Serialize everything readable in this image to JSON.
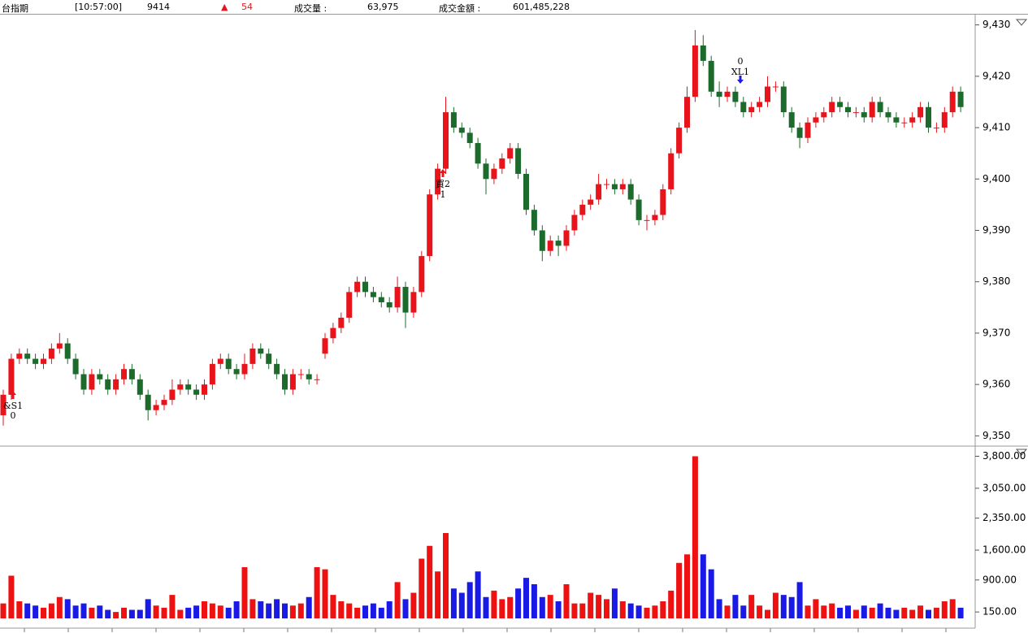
{
  "header": {
    "symbol": "台指期",
    "time": "[10:57:00]",
    "price": 9414,
    "change_symbol": "▲",
    "change": 54,
    "volume_label": "成交量 :",
    "volume": "63,975",
    "amount_label": "成交金額 :",
    "amount": "601,485,228"
  },
  "chart_data": {
    "type": "candlestick",
    "open": [
      9354,
      9358,
      9365,
      9366,
      9365,
      9364,
      9365,
      9367,
      9368,
      9365,
      9362,
      9359,
      9362,
      9361,
      9359,
      9361,
      9363,
      9361,
      9358,
      9355,
      9356,
      9357,
      9359,
      9360,
      9359,
      9358,
      9360,
      9364,
      9365,
      9363,
      9362,
      9364,
      9367,
      9366,
      9364,
      9362,
      9359,
      9362,
      9362,
      9361,
      9366,
      9369,
      9371,
      9373,
      9378,
      9380,
      9378,
      9377,
      9376,
      9375,
      9379,
      9374,
      9378,
      9385,
      9397,
      9402,
      9413,
      9410,
      9409,
      9407,
      9403,
      9400,
      9402,
      9404,
      9406,
      9401,
      9394,
      9390,
      9386,
      9388,
      9387,
      9390,
      9393,
      9395,
      9396,
      9399,
      9399,
      9398,
      9399,
      9396,
      9392,
      9392,
      9393,
      9398,
      9405,
      9410,
      9416,
      9426,
      9423,
      9417,
      9416,
      9417,
      9415,
      9413,
      9414,
      9415,
      9418,
      9418,
      9413,
      9410,
      9408,
      9411,
      9412,
      9413,
      9415,
      9414,
      9413,
      9413,
      9412,
      9415,
      9413,
      9412,
      9411,
      9411,
      9412,
      9414,
      9410,
      9410,
      9413,
      9417
    ],
    "high": [
      9359,
      9366,
      9367,
      9367,
      9366,
      9366,
      9368,
      9370,
      9369,
      9366,
      9363,
      9363,
      9363,
      9362,
      9362,
      9364,
      9364,
      9362,
      9359,
      9357,
      9358,
      9361,
      9361,
      9361,
      9360,
      9361,
      9365,
      9366,
      9366,
      9364,
      9366,
      9368,
      9368,
      9367,
      9365,
      9363,
      9363,
      9363,
      9363,
      9362,
      9370,
      9372,
      9374,
      9379,
      9381,
      9381,
      9379,
      9378,
      9377,
      9381,
      9380,
      9379,
      9386,
      9398,
      9403,
      9416,
      9414,
      9411,
      9410,
      9408,
      9404,
      9403,
      9405,
      9407,
      9407,
      9402,
      9395,
      9391,
      9389,
      9389,
      9391,
      9394,
      9396,
      9397,
      9401,
      9400,
      9400,
      9400,
      9400,
      9397,
      9393,
      9394,
      9399,
      9406,
      9411,
      9418,
      9429,
      9428,
      9424,
      9419,
      9418,
      9418,
      9416,
      9415,
      9416,
      9420,
      9419,
      9419,
      9414,
      9411,
      9412,
      9413,
      9414,
      9416,
      9416,
      9415,
      9414,
      9414,
      9416,
      9416,
      9414,
      9413,
      9412,
      9413,
      9415,
      9415,
      9411,
      9414,
      9418,
      9418
    ],
    "low": [
      9352,
      9357,
      9364,
      9364,
      9363,
      9363,
      9364,
      9366,
      9364,
      9361,
      9358,
      9358,
      9360,
      9358,
      9358,
      9360,
      9360,
      9357,
      9353,
      9354,
      9355,
      9356,
      9358,
      9358,
      9357,
      9357,
      9359,
      9363,
      9362,
      9361,
      9361,
      9363,
      9365,
      9363,
      9361,
      9358,
      9358,
      9361,
      9360,
      9360,
      9365,
      9368,
      9370,
      9372,
      9377,
      9377,
      9376,
      9375,
      9374,
      9374,
      9371,
      9373,
      9377,
      9384,
      9396,
      9401,
      9409,
      9408,
      9406,
      9402,
      9397,
      9399,
      9401,
      9403,
      9400,
      9393,
      9389,
      9384,
      9385,
      9385,
      9386,
      9389,
      9392,
      9394,
      9395,
      9398,
      9397,
      9397,
      9395,
      9391,
      9390,
      9391,
      9392,
      9397,
      9404,
      9409,
      9415,
      9422,
      9416,
      9414,
      9415,
      9414,
      9412,
      9412,
      9413,
      9414,
      9417,
      9412,
      9409,
      9406,
      9407,
      9410,
      9411,
      9412,
      9413,
      9412,
      9412,
      9411,
      9411,
      9412,
      9411,
      9410,
      9410,
      9410,
      9411,
      9409,
      9409,
      9409,
      9412,
      9413
    ],
    "close": [
      9358,
      9365,
      9366,
      9365,
      9364,
      9365,
      9367,
      9368,
      9365,
      9362,
      9359,
      9362,
      9361,
      9359,
      9361,
      9363,
      9361,
      9358,
      9355,
      9356,
      9357,
      9359,
      9360,
      9359,
      9358,
      9360,
      9364,
      9365,
      9363,
      9362,
      9364,
      9367,
      9366,
      9364,
      9362,
      9359,
      9362,
      9362,
      9361,
      9361,
      9369,
      9371,
      9373,
      9378,
      9380,
      9378,
      9377,
      9376,
      9375,
      9379,
      9374,
      9378,
      9385,
      9397,
      9402,
      9413,
      9410,
      9409,
      9407,
      9403,
      9400,
      9402,
      9404,
      9406,
      9401,
      9394,
      9390,
      9386,
      9388,
      9387,
      9390,
      9393,
      9395,
      9396,
      9399,
      9399,
      9398,
      9399,
      9396,
      9392,
      9392,
      9393,
      9398,
      9405,
      9410,
      9416,
      9426,
      9423,
      9417,
      9416,
      9417,
      9415,
      9413,
      9414,
      9415,
      9418,
      9418,
      9413,
      9410,
      9408,
      9411,
      9412,
      9413,
      9415,
      9414,
      9413,
      9413,
      9412,
      9415,
      9413,
      9412,
      9411,
      9411,
      9412,
      9414,
      9410,
      9410,
      9413,
      9417,
      9414
    ],
    "ylim": [
      9348,
      9432
    ],
    "yticks": [
      {
        "value": 9350,
        "label": "9,350"
      },
      {
        "value": 9360,
        "label": "9,360"
      },
      {
        "value": 9370,
        "label": "9,370"
      },
      {
        "value": 9380,
        "label": "9,380"
      },
      {
        "value": 9390,
        "label": "9,390"
      },
      {
        "value": 9400,
        "label": "9,400"
      },
      {
        "value": 9410,
        "label": "9,410"
      },
      {
        "value": 9420,
        "label": "9,420"
      },
      {
        "value": 9430,
        "label": "9,430"
      }
    ],
    "up_color": "#e8141c",
    "down_color": "#1d6b2c",
    "volume": {
      "values": [
        350,
        1000,
        400,
        350,
        300,
        250,
        350,
        500,
        450,
        300,
        350,
        250,
        300,
        200,
        150,
        250,
        200,
        200,
        450,
        300,
        250,
        550,
        200,
        250,
        300,
        400,
        350,
        300,
        250,
        400,
        1200,
        450,
        400,
        350,
        450,
        350,
        300,
        350,
        500,
        1200,
        1150,
        550,
        400,
        350,
        250,
        300,
        350,
        250,
        400,
        850,
        450,
        600,
        1400,
        1700,
        1100,
        2000,
        700,
        600,
        850,
        1100,
        500,
        650,
        450,
        500,
        700,
        950,
        800,
        500,
        550,
        400,
        800,
        350,
        350,
        600,
        550,
        450,
        700,
        400,
        350,
        300,
        250,
        300,
        400,
        650,
        1300,
        1500,
        3800,
        1500,
        1150,
        450,
        300,
        550,
        300,
        550,
        300,
        200,
        600,
        550,
        500,
        850,
        300,
        450,
        300,
        350,
        250,
        300,
        200,
        300,
        250,
        350,
        250,
        200,
        250,
        200,
        300,
        200,
        250,
        400,
        450,
        250
      ],
      "ylim": [
        0,
        4000
      ],
      "yticks": [
        {
          "value": 150,
          "label": "150.00"
        },
        {
          "value": 900,
          "label": "900.00"
        },
        {
          "value": 1600,
          "label": "1,600.00"
        },
        {
          "value": 2350,
          "label": "2,350.00"
        },
        {
          "value": 3050,
          "label": "3,050.00"
        },
        {
          "value": 3800,
          "label": "3,800.00"
        }
      ],
      "up_color": "#ee1111",
      "down_color": "#1a1ae6"
    },
    "signals": [
      {
        "label": "&S1",
        "count": 0
      },
      {
        "label": "買2",
        "count": 1
      },
      {
        "label": "XL1",
        "count": 0
      }
    ]
  }
}
